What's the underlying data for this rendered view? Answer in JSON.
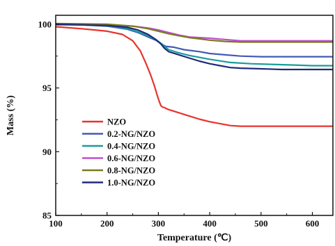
{
  "chart_data": {
    "type": "line",
    "xlabel": "Temperature (℃)",
    "ylabel": "Mass (%)",
    "xlim": [
      100,
      640
    ],
    "ylim": [
      85,
      100.7
    ],
    "xticks": [
      100,
      200,
      300,
      400,
      500,
      600
    ],
    "yticks": [
      85,
      90,
      95,
      100
    ],
    "legend_position": "lower-left",
    "grid": false,
    "series": [
      {
        "name": "NZO",
        "color": "#e8322d",
        "x": [
          100,
          150,
          200,
          230,
          250,
          265,
          275,
          285,
          292,
          298,
          302,
          305,
          308,
          312,
          320,
          340,
          360,
          380,
          400,
          420,
          440,
          460,
          480,
          500,
          550,
          600,
          640
        ],
        "y": [
          99.8,
          99.65,
          99.45,
          99.2,
          98.7,
          97.9,
          97.0,
          96.0,
          95.2,
          94.4,
          93.9,
          93.6,
          93.5,
          93.45,
          93.3,
          93.05,
          92.8,
          92.55,
          92.35,
          92.2,
          92.05,
          92.0,
          92.0,
          92.0,
          92.0,
          92.0,
          92.0
        ]
      },
      {
        "name": "0.2-NG/NZO",
        "color": "#4459b5",
        "x": [
          100,
          150,
          200,
          240,
          260,
          280,
          295,
          305,
          310,
          315,
          330,
          350,
          380,
          400,
          430,
          460,
          500,
          550,
          600,
          640
        ],
        "y": [
          100.0,
          99.95,
          99.85,
          99.6,
          99.35,
          99.0,
          98.75,
          98.5,
          98.35,
          98.25,
          98.2,
          98.0,
          97.85,
          97.7,
          97.6,
          97.5,
          97.45,
          97.45,
          97.45,
          97.45
        ]
      },
      {
        "name": "0.4-NG/NZO",
        "color": "#1a9c9a",
        "x": [
          100,
          150,
          200,
          240,
          260,
          280,
          295,
          305,
          312,
          320,
          340,
          360,
          400,
          440,
          480,
          520,
          560,
          600,
          640
        ],
        "y": [
          99.95,
          99.95,
          99.9,
          99.65,
          99.4,
          99.1,
          98.8,
          98.5,
          98.25,
          98.0,
          97.75,
          97.55,
          97.25,
          97.0,
          96.9,
          96.85,
          96.8,
          96.75,
          96.75
        ]
      },
      {
        "name": "0.6-NG/NZO",
        "color": "#c04fd0",
        "x": [
          100,
          200,
          250,
          280,
          300,
          320,
          340,
          360,
          380,
          400,
          430,
          460,
          500,
          550,
          600,
          640
        ],
        "y": [
          100.0,
          99.95,
          99.85,
          99.7,
          99.55,
          99.35,
          99.15,
          99.0,
          98.95,
          98.9,
          98.8,
          98.7,
          98.7,
          98.7,
          98.7,
          98.7
        ]
      },
      {
        "name": "0.8-NG/NZO",
        "color": "#7a7a1c",
        "x": [
          100,
          200,
          250,
          280,
          300,
          320,
          340,
          360,
          380,
          400,
          430,
          460,
          500,
          550,
          600,
          640
        ],
        "y": [
          100.05,
          100.0,
          99.85,
          99.65,
          99.45,
          99.25,
          99.1,
          98.95,
          98.85,
          98.75,
          98.65,
          98.6,
          98.6,
          98.6,
          98.6,
          98.6
        ]
      },
      {
        "name": "1.0-NG/NZO",
        "color": "#1f2a7a",
        "x": [
          100,
          150,
          200,
          240,
          260,
          280,
          295,
          305,
          312,
          320,
          340,
          360,
          380,
          400,
          420,
          440,
          460,
          500,
          540,
          600,
          640
        ],
        "y": [
          100.0,
          99.95,
          99.9,
          99.75,
          99.55,
          99.2,
          98.8,
          98.45,
          98.1,
          97.85,
          97.6,
          97.35,
          97.1,
          96.9,
          96.75,
          96.6,
          96.55,
          96.5,
          96.45,
          96.45,
          96.45
        ]
      }
    ]
  }
}
